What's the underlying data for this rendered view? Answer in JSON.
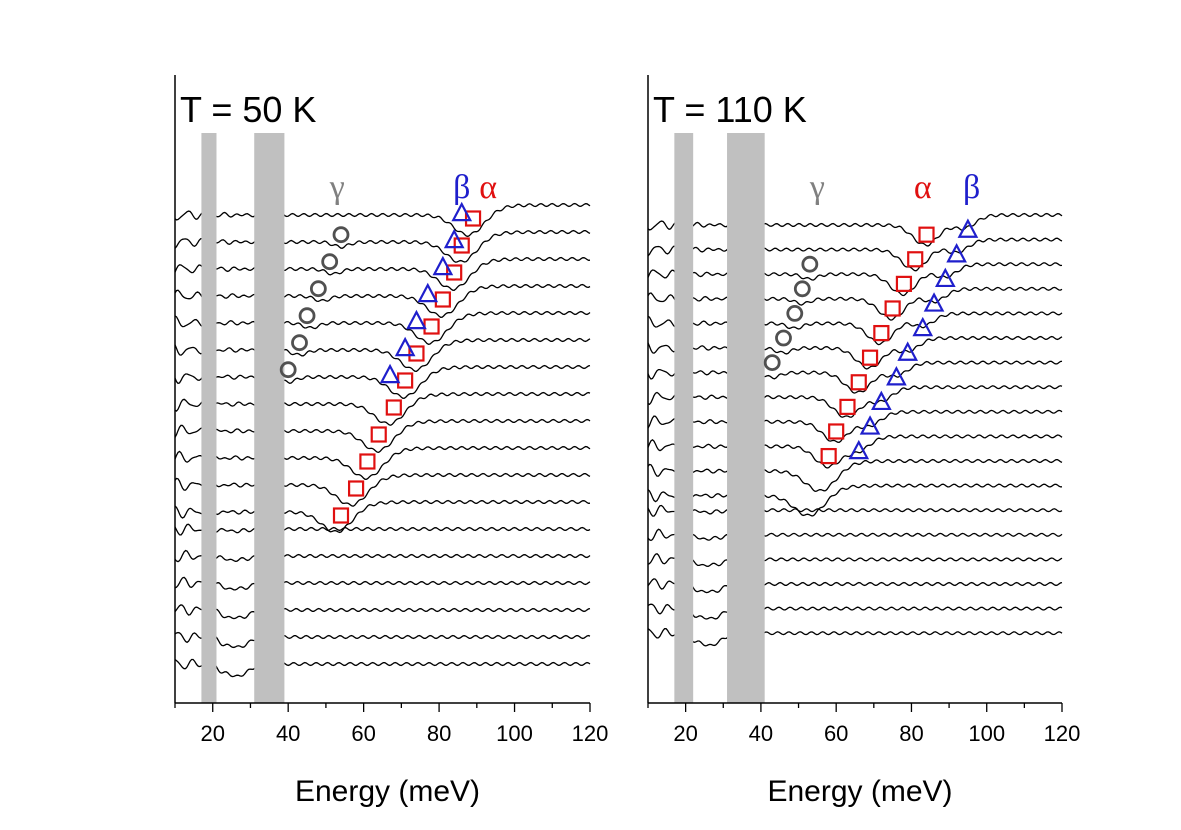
{
  "chart_data": [
    {
      "type": "line",
      "title": "T = 50 K",
      "xlabel": "Energy (meV)",
      "ylabel": "",
      "xlim": [
        10,
        120
      ],
      "xticks": [
        20,
        40,
        60,
        80,
        100,
        120
      ],
      "n_spectra": 18,
      "excluded_bands": [
        [
          17,
          21
        ],
        [
          31,
          39
        ]
      ],
      "mode_labels": [
        {
          "text": "γ",
          "x": 53,
          "color": "#808080"
        },
        {
          "text": "β",
          "x": 86,
          "color": "#1f1fcc"
        },
        {
          "text": "α",
          "x": 93,
          "color": "#e01010"
        }
      ],
      "spectra": [
        {
          "a": 88,
          "w": 4,
          "g": 0
        },
        {
          "a": 86,
          "w": 4,
          "g": 54
        },
        {
          "a": 84,
          "w": 4,
          "g": 52
        },
        {
          "a": 81,
          "w": 4,
          "g": 49
        },
        {
          "a": 78,
          "w": 4,
          "g": 46
        },
        {
          "a": 74,
          "w": 4,
          "g": 43
        },
        {
          "a": 71,
          "w": 4,
          "g": 40
        },
        {
          "a": 67,
          "w": 4,
          "g": 0
        },
        {
          "a": 64,
          "w": 4,
          "g": 0
        },
        {
          "a": 61,
          "w": 4,
          "g": 0
        },
        {
          "a": 57,
          "w": 4,
          "g": 0
        },
        {
          "a": 53,
          "w": 4,
          "g": 0
        },
        {
          "a": 0,
          "w": 0,
          "g": 0
        },
        {
          "a": 0,
          "w": 0,
          "g": 0
        },
        {
          "a": 0,
          "w": 0,
          "g": 0
        },
        {
          "a": 0,
          "w": 0,
          "g": 0
        },
        {
          "a": 0,
          "w": 0,
          "g": 0
        },
        {
          "a": 0,
          "w": 0,
          "g": 0
        }
      ],
      "series": [
        {
          "name": "α",
          "marker": "square",
          "color": "#e01010",
          "points": [
            [
              89,
              0.5
            ],
            [
              86,
              1.5
            ],
            [
              84,
              2.5
            ],
            [
              81,
              3.5
            ],
            [
              78,
              4.5
            ],
            [
              74,
              5.5
            ],
            [
              71,
              6.5
            ],
            [
              68,
              7.5
            ],
            [
              64,
              8.5
            ],
            [
              61,
              9.5
            ],
            [
              58,
              10.5
            ],
            [
              54,
              11.5
            ]
          ]
        },
        {
          "name": "β",
          "marker": "triangle",
          "color": "#1f1fcc",
          "points": [
            [
              86,
              0.3
            ],
            [
              84,
              1.3
            ],
            [
              81,
              2.3
            ],
            [
              77,
              3.3
            ],
            [
              74,
              4.3
            ],
            [
              71,
              5.3
            ],
            [
              67,
              6.3
            ]
          ]
        },
        {
          "name": "γ",
          "marker": "circle",
          "color": "#505050",
          "points": [
            [
              54,
              1.1
            ],
            [
              51,
              2.1
            ],
            [
              48,
              3.1
            ],
            [
              45,
              4.1
            ],
            [
              43,
              5.1
            ],
            [
              40,
              6.1
            ]
          ]
        }
      ]
    },
    {
      "type": "line",
      "title": "T = 110 K",
      "xlabel": "Energy (meV)",
      "ylabel": "",
      "xlim": [
        10,
        120
      ],
      "xticks": [
        20,
        40,
        60,
        80,
        100,
        120
      ],
      "n_spectra": 18,
      "excluded_bands": [
        [
          17,
          22
        ],
        [
          31,
          41
        ]
      ],
      "mode_labels": [
        {
          "text": "γ",
          "x": 55,
          "color": "#808080"
        },
        {
          "text": "α",
          "x": 83,
          "color": "#e01010"
        },
        {
          "text": "β",
          "x": 96,
          "color": "#1f1fcc"
        }
      ],
      "spectra": [
        {
          "a": 84,
          "w": 3.5,
          "b": 94,
          "g": 0
        },
        {
          "a": 81,
          "w": 3.5,
          "b": 92,
          "g": 0
        },
        {
          "a": 78,
          "w": 3.5,
          "b": 89,
          "g": 53
        },
        {
          "a": 75,
          "w": 3.5,
          "b": 86,
          "g": 51
        },
        {
          "a": 72,
          "w": 3.5,
          "b": 83,
          "g": 49
        },
        {
          "a": 69,
          "w": 3.5,
          "b": 79,
          "g": 46
        },
        {
          "a": 66,
          "w": 3.5,
          "b": 76,
          "g": 43
        },
        {
          "a": 63,
          "w": 3.5,
          "b": 72,
          "g": 0
        },
        {
          "a": 60,
          "w": 3.5,
          "b": 69,
          "g": 0
        },
        {
          "a": 58,
          "w": 3.5,
          "b": 66,
          "g": 0
        },
        {
          "a": 56,
          "w": 4,
          "b": 0,
          "g": 0
        },
        {
          "a": 53,
          "w": 4,
          "b": 0,
          "g": 0
        },
        {
          "a": 0,
          "w": 0,
          "b": 0,
          "g": 0
        },
        {
          "a": 0,
          "w": 0,
          "b": 0,
          "g": 0
        },
        {
          "a": 0,
          "w": 0,
          "b": 0,
          "g": 0
        },
        {
          "a": 0,
          "w": 0,
          "b": 0,
          "g": 0
        },
        {
          "a": 0,
          "w": 0,
          "b": 0,
          "g": 0
        },
        {
          "a": 0,
          "w": 0,
          "b": 0,
          "g": 0
        }
      ],
      "series": [
        {
          "name": "α",
          "marker": "square",
          "color": "#e01010",
          "points": [
            [
              84,
              0.8
            ],
            [
              81,
              1.8
            ],
            [
              78,
              2.8
            ],
            [
              75,
              3.8
            ],
            [
              72,
              4.8
            ],
            [
              69,
              5.8
            ],
            [
              66,
              6.8
            ],
            [
              63,
              7.8
            ],
            [
              60,
              8.8
            ],
            [
              58,
              9.8
            ]
          ]
        },
        {
          "name": "β",
          "marker": "triangle",
          "color": "#1f1fcc",
          "points": [
            [
              95,
              0.6
            ],
            [
              92,
              1.6
            ],
            [
              89,
              2.6
            ],
            [
              86,
              3.6
            ],
            [
              83,
              4.6
            ],
            [
              79,
              5.6
            ],
            [
              76,
              6.6
            ],
            [
              72,
              7.6
            ],
            [
              69,
              8.6
            ],
            [
              66,
              9.6
            ]
          ]
        },
        {
          "name": "γ",
          "marker": "circle",
          "color": "#505050",
          "points": [
            [
              53,
              2.0
            ],
            [
              51,
              3.0
            ],
            [
              49,
              4.0
            ],
            [
              46,
              5.0
            ],
            [
              43,
              6.0
            ]
          ]
        }
      ]
    }
  ]
}
